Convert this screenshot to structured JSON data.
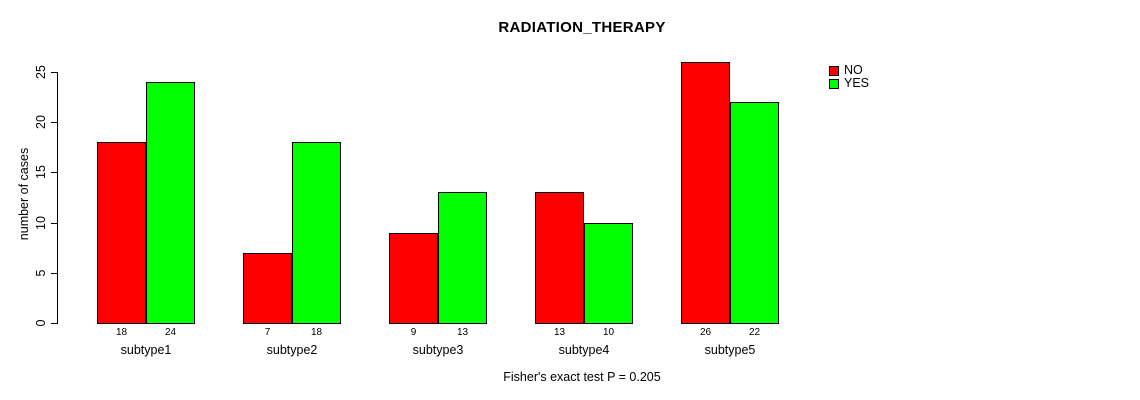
{
  "chart_data": {
    "type": "bar",
    "title": "RADIATION_THERAPY",
    "xlabel": "",
    "ylabel": "number of cases",
    "annotation": "Fisher's exact test P = 0.205",
    "categories": [
      "subtype1",
      "subtype2",
      "subtype3",
      "subtype4",
      "subtype5"
    ],
    "series": [
      {
        "name": "NO",
        "color": "#FF0000",
        "values": [
          18,
          7,
          9,
          13,
          26
        ]
      },
      {
        "name": "YES",
        "color": "#00FF00",
        "values": [
          24,
          18,
          13,
          10,
          22
        ]
      }
    ],
    "y_ticks": [
      0,
      5,
      10,
      15,
      20,
      25
    ],
    "ylim": [
      0,
      25
    ],
    "grid": false,
    "legend_position": "top-right",
    "bar_value_labels_shown": true,
    "text_color": "#000000",
    "background_color": "#ffffff"
  }
}
